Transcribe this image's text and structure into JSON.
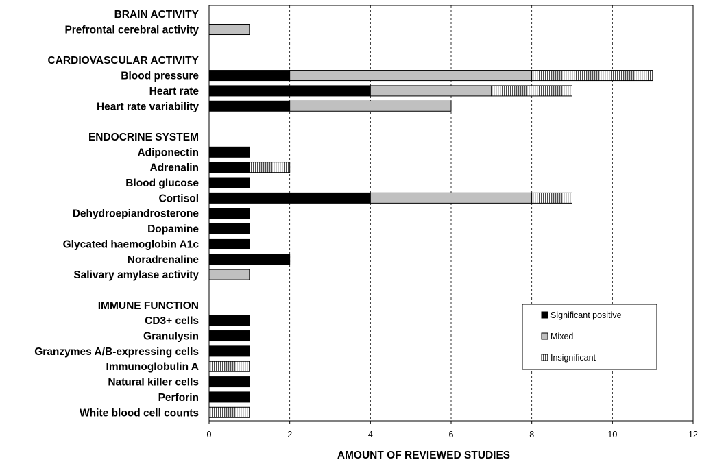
{
  "chart_data": {
    "type": "bar",
    "orientation": "horizontal",
    "stacked": true,
    "xlabel": "AMOUNT OF REVIEWED STUDIES",
    "xlim": [
      0,
      12
    ],
    "xticks": [
      0,
      2,
      4,
      6,
      8,
      10,
      12
    ],
    "grid": "vertical-dashed",
    "legend_position": "lower-right",
    "series": [
      {
        "name": "Significant positive",
        "color": "#000000",
        "pattern": "solid"
      },
      {
        "name": "Mixed",
        "color": "#c0c0c0",
        "pattern": "solid"
      },
      {
        "name": "Insignificant",
        "color": "#ffffff",
        "pattern": "vertical-lines"
      }
    ],
    "rows": [
      {
        "label": "BRAIN ACTIVITY",
        "header": true
      },
      {
        "label": "Prefrontal cerebral activity",
        "values": [
          0,
          1,
          0
        ]
      },
      {
        "label": "",
        "spacer": true
      },
      {
        "label": "CARDIOVASCULAR ACTIVITY",
        "header": true
      },
      {
        "label": "Blood pressure",
        "values": [
          2,
          6,
          3
        ]
      },
      {
        "label": "Heart rate",
        "values": [
          4,
          3,
          2
        ]
      },
      {
        "label": "Heart rate variability",
        "values": [
          2,
          4,
          0
        ]
      },
      {
        "label": "",
        "spacer": true
      },
      {
        "label": "ENDOCRINE SYSTEM",
        "header": true
      },
      {
        "label": "Adiponectin",
        "values": [
          1,
          0,
          0
        ]
      },
      {
        "label": "Adrenalin",
        "values": [
          1,
          0,
          1
        ]
      },
      {
        "label": "Blood glucose",
        "values": [
          1,
          0,
          0
        ]
      },
      {
        "label": "Cortisol",
        "values": [
          4,
          4,
          1
        ]
      },
      {
        "label": "Dehydroepiandrosterone",
        "values": [
          1,
          0,
          0
        ]
      },
      {
        "label": "Dopamine",
        "values": [
          1,
          0,
          0
        ]
      },
      {
        "label": "Glycated haemoglobin A1c",
        "values": [
          1,
          0,
          0
        ]
      },
      {
        "label": "Noradrenaline",
        "values": [
          2,
          0,
          0
        ]
      },
      {
        "label": "Salivary amylase activity",
        "values": [
          0,
          1,
          0
        ]
      },
      {
        "label": "",
        "spacer": true
      },
      {
        "label": "IMMUNE FUNCTION",
        "header": true
      },
      {
        "label": "CD3+ cells",
        "values": [
          1,
          0,
          0
        ]
      },
      {
        "label": "Granulysin",
        "values": [
          1,
          0,
          0
        ]
      },
      {
        "label": "Granzymes A/B-expressing cells",
        "values": [
          1,
          0,
          0
        ]
      },
      {
        "label": "Immunoglobulin A",
        "values": [
          0,
          0,
          1
        ]
      },
      {
        "label": "Natural killer cells",
        "values": [
          1,
          0,
          0
        ]
      },
      {
        "label": "Perforin",
        "values": [
          1,
          0,
          0
        ]
      },
      {
        "label": "White blood cell counts",
        "values": [
          0,
          0,
          1
        ]
      }
    ]
  }
}
